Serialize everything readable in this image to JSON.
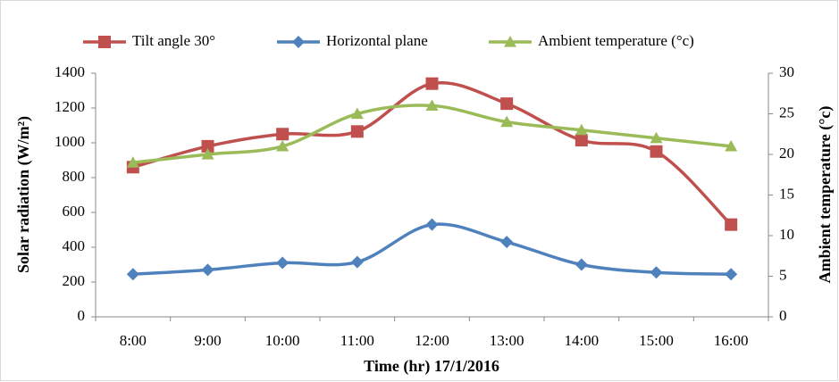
{
  "chart_data": {
    "type": "line",
    "categories": [
      "8:00",
      "9:00",
      "10:00",
      "11:00",
      "12:00",
      "13:00",
      "14:00",
      "15:00",
      "16:00"
    ],
    "series": [
      {
        "name": "Tilt angle 30°",
        "color": "#c0504d",
        "marker": "square",
        "values": [
          860,
          980,
          1050,
          1065,
          1340,
          1225,
          1015,
          950,
          530
        ]
      },
      {
        "name": "Horizontal plane",
        "color": "#4f81bd",
        "marker": "diamond",
        "values": [
          245,
          270,
          310,
          315,
          530,
          430,
          300,
          255,
          245
        ]
      },
      {
        "name": "Ambient temperature (°c)",
        "color": "#9bbb59",
        "marker": "triangle",
        "axis": "y2",
        "values": [
          19,
          20,
          21,
          25,
          26,
          24,
          23,
          22,
          21
        ]
      }
    ],
    "x_label": "Time (hr) 17/1/2016",
    "y_label": "Solar radiation (W/m²)",
    "y2_label": "Ambient temperature (°c)",
    "ylim": [
      0,
      1400
    ],
    "yticks": [
      0,
      200,
      400,
      600,
      800,
      1000,
      1200,
      1400
    ],
    "y2lim": [
      0,
      30
    ],
    "y2ticks": [
      0,
      5,
      10,
      15,
      20,
      25,
      30
    ],
    "smooth": true,
    "grid": false,
    "legend": "top"
  }
}
